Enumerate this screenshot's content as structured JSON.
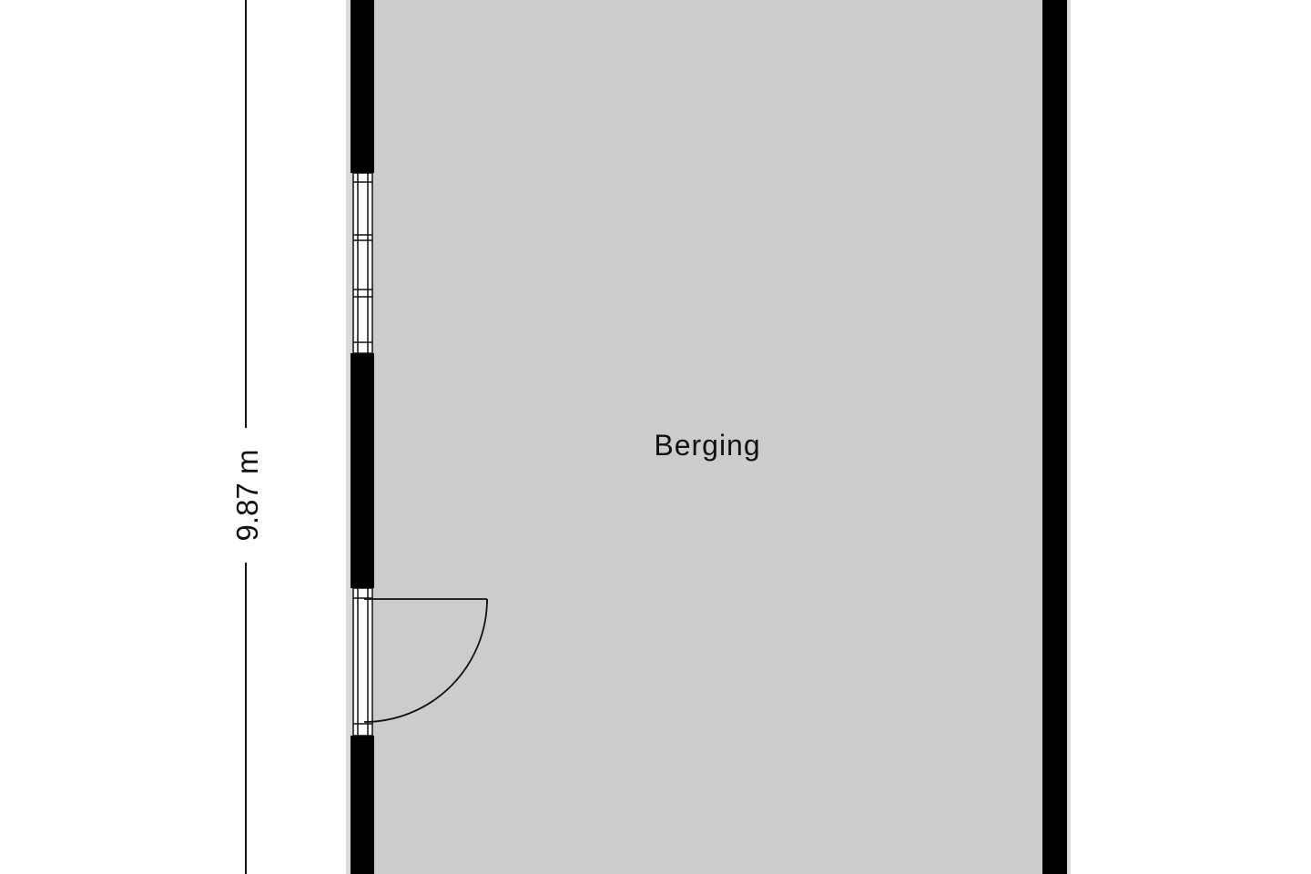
{
  "plan": {
    "room": {
      "name": "Berging"
    },
    "dimension": {
      "label": "9.87 m"
    },
    "colors": {
      "floor": "#cccccc",
      "wall": "#000000",
      "frame": "#ffffff",
      "line": "#111111",
      "background": "#ffffff"
    }
  }
}
